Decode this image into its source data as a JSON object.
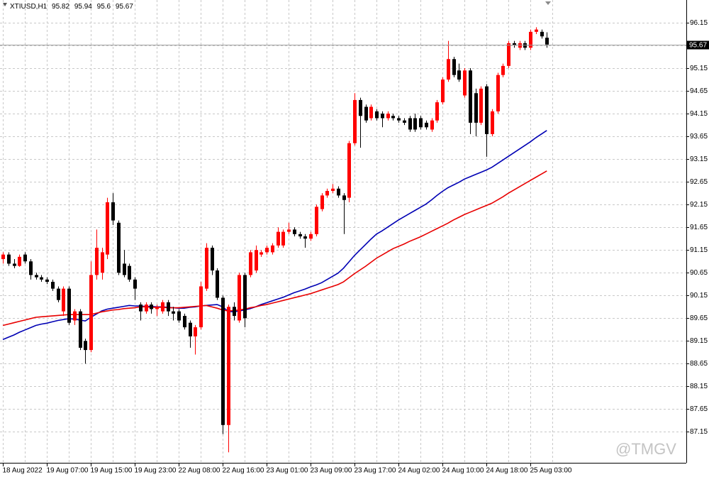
{
  "chart_data": {
    "type": "candlestick",
    "title": "XTIUSD,H1",
    "watermark": "@TMGV",
    "up_color": "#ff0000",
    "down_color": "#000000",
    "grid": true,
    "ylim": [
      86.5,
      96.65
    ],
    "yticks": [
      96.15,
      95.65,
      95.15,
      94.65,
      94.15,
      93.65,
      93.15,
      92.65,
      92.15,
      91.65,
      91.15,
      90.65,
      90.15,
      89.65,
      89.15,
      88.65,
      88.15,
      87.65,
      87.15
    ],
    "categories": [
      "18 Aug 2022",
      null,
      null,
      null,
      null,
      null,
      null,
      null,
      "19 Aug 07:00",
      null,
      null,
      null,
      null,
      null,
      null,
      null,
      "19 Aug 15:00",
      null,
      null,
      null,
      null,
      null,
      null,
      null,
      "19 Aug 23:00",
      null,
      null,
      null,
      null,
      null,
      null,
      null,
      "22 Aug 08:00",
      null,
      null,
      null,
      null,
      null,
      null,
      null,
      "22 Aug 16:00",
      null,
      null,
      null,
      null,
      null,
      null,
      null,
      "23 Aug 01:00",
      null,
      null,
      null,
      null,
      null,
      null,
      null,
      "23 Aug 09:00",
      null,
      null,
      null,
      null,
      null,
      null,
      null,
      "23 Aug 17:00",
      null,
      null,
      null,
      null,
      null,
      null,
      null,
      "24 Aug 02:00",
      null,
      null,
      null,
      null,
      null,
      null,
      null,
      "24 Aug 10:00",
      null,
      null,
      null,
      null,
      null,
      null,
      null,
      "24 Aug 18:00",
      null,
      null,
      null,
      null,
      null,
      null,
      null,
      "25 Aug 03:00",
      null,
      null,
      null
    ],
    "open": [
      90.95,
      91.05,
      90.85,
      90.8,
      91.05,
      90.9,
      90.6,
      90.55,
      90.5,
      90.45,
      90.3,
      89.8,
      90.3,
      89.6,
      89.8,
      89.15,
      88.95,
      90.6,
      90.65,
      91.05,
      92.2,
      91.75,
      90.85,
      90.8,
      90.5,
      89.95,
      89.8,
      89.95,
      89.85,
      89.8,
      90.0,
      89.8,
      89.8,
      89.7,
      89.55,
      89.25,
      89.45,
      90.3,
      91.2,
      90.7,
      90.1,
      87.3,
      89.9,
      89.6,
      90.6,
      90.6,
      90.7,
      91.05,
      91.1,
      91.1,
      91.25,
      91.25,
      91.55,
      91.6,
      91.5,
      91.45,
      91.4,
      91.5,
      92.05,
      92.35,
      92.45,
      92.5,
      92.35,
      92.3,
      93.5,
      94.45,
      94.3,
      94.05,
      94.2,
      94.15,
      94.05,
      94.1,
      94.05,
      94.0,
      94.05,
      94.05,
      94.05,
      93.95,
      93.8,
      94.0,
      94.4,
      94.9,
      95.35,
      95.1,
      94.55,
      95.1,
      94.6,
      93.95,
      94.75,
      93.7,
      94.2,
      95.0,
      95.2,
      95.7,
      95.6,
      95.7,
      95.6,
      95.95,
      95.95,
      95.82
    ],
    "high": [
      91.1,
      91.1,
      90.95,
      91.05,
      91.1,
      90.95,
      90.65,
      90.6,
      90.55,
      90.5,
      90.35,
      90.35,
      90.35,
      89.85,
      89.85,
      89.2,
      90.9,
      91.6,
      91.2,
      92.3,
      92.4,
      91.8,
      91.15,
      90.85,
      90.55,
      90.0,
      90.0,
      90.0,
      89.95,
      90.05,
      90.05,
      89.9,
      89.85,
      89.75,
      89.6,
      89.5,
      90.45,
      91.3,
      91.25,
      90.75,
      90.15,
      89.95,
      90.0,
      90.65,
      90.65,
      91.15,
      91.25,
      91.15,
      91.25,
      91.3,
      91.65,
      91.6,
      91.75,
      91.65,
      91.55,
      91.5,
      91.55,
      92.15,
      92.4,
      92.5,
      92.6,
      92.55,
      92.4,
      93.55,
      94.6,
      94.5,
      94.35,
      94.35,
      94.25,
      94.2,
      94.2,
      94.15,
      94.1,
      94.05,
      94.1,
      94.15,
      94.1,
      94.0,
      94.05,
      94.45,
      94.95,
      95.75,
      95.4,
      95.25,
      95.15,
      95.15,
      94.7,
      94.75,
      94.8,
      94.25,
      95.05,
      95.25,
      95.75,
      95.75,
      95.75,
      95.75,
      96.0,
      96.05,
      96.0,
      95.94
    ],
    "low": [
      90.85,
      90.8,
      90.75,
      90.78,
      90.85,
      90.5,
      90.5,
      90.45,
      90.4,
      90.25,
      90.0,
      89.7,
      89.5,
      89.5,
      88.95,
      88.65,
      88.9,
      90.5,
      90.5,
      90.95,
      91.7,
      90.6,
      90.55,
      90.45,
      90.05,
      89.6,
      89.75,
      89.75,
      89.7,
      89.75,
      89.7,
      89.6,
      89.55,
      89.4,
      89.0,
      88.85,
      89.4,
      90.25,
      90.6,
      90.05,
      87.1,
      86.7,
      89.6,
      89.55,
      89.45,
      90.55,
      90.65,
      91.0,
      91.05,
      91.05,
      91.2,
      91.2,
      91.5,
      91.45,
      91.4,
      91.2,
      91.35,
      91.45,
      92.0,
      92.3,
      92.4,
      92.3,
      91.5,
      92.2,
      93.45,
      93.4,
      93.95,
      94.0,
      94.0,
      93.85,
      94.0,
      94.0,
      93.95,
      93.9,
      93.75,
      93.75,
      93.8,
      93.8,
      93.75,
      93.95,
      94.35,
      94.85,
      94.95,
      94.85,
      94.5,
      93.7,
      93.65,
      93.9,
      93.2,
      93.65,
      94.15,
      94.95,
      95.15,
      95.6,
      95.55,
      95.55,
      95.55,
      95.9,
      95.8,
      95.6
    ],
    "close": [
      91.05,
      90.85,
      90.8,
      91.0,
      90.9,
      90.6,
      90.55,
      90.5,
      90.45,
      90.3,
      90.05,
      90.3,
      89.55,
      89.8,
      89.0,
      88.95,
      90.6,
      91.2,
      91.1,
      92.2,
      91.8,
      90.65,
      90.6,
      90.5,
      90.3,
      89.8,
      89.95,
      89.85,
      89.9,
      90.0,
      89.8,
      89.75,
      89.6,
      89.45,
      89.25,
      89.45,
      90.35,
      91.2,
      90.7,
      90.1,
      87.3,
      89.9,
      89.7,
      90.6,
      89.65,
      91.1,
      91.15,
      91.1,
      91.2,
      91.25,
      91.55,
      91.55,
      91.6,
      91.5,
      91.45,
      91.4,
      91.5,
      92.1,
      92.35,
      92.45,
      92.5,
      92.35,
      92.25,
      93.5,
      94.45,
      94.1,
      94.0,
      94.3,
      94.05,
      94.05,
      94.15,
      94.05,
      94.0,
      93.95,
      93.8,
      93.8,
      93.85,
      93.85,
      94.0,
      94.4,
      94.9,
      95.35,
      95.0,
      94.9,
      95.1,
      93.95,
      93.95,
      94.7,
      93.7,
      94.2,
      95.0,
      95.2,
      95.7,
      95.65,
      95.7,
      95.6,
      95.95,
      96.0,
      95.85,
      95.67
    ],
    "series": [
      {
        "color": "#0000b4",
        "values": [
          89.18,
          89.23,
          89.28,
          89.34,
          89.39,
          89.44,
          89.49,
          89.52,
          89.54,
          89.57,
          89.6,
          89.62,
          89.64,
          89.63,
          89.61,
          89.59,
          89.67,
          89.74,
          89.81,
          89.85,
          89.87,
          89.89,
          89.91,
          89.93,
          89.92,
          89.92,
          89.91,
          89.91,
          89.9,
          89.9,
          89.89,
          89.88,
          89.87,
          89.87,
          89.89,
          89.9,
          89.92,
          89.93,
          89.94,
          89.95,
          89.9,
          89.8,
          89.79,
          89.81,
          89.83,
          89.86,
          89.9,
          89.95,
          89.99,
          90.03,
          90.07,
          90.11,
          90.16,
          90.21,
          90.25,
          90.29,
          90.34,
          90.38,
          90.43,
          90.5,
          90.57,
          90.64,
          90.75,
          90.89,
          91.03,
          91.15,
          91.27,
          91.39,
          91.5,
          91.57,
          91.65,
          91.73,
          91.81,
          91.88,
          91.95,
          92.02,
          92.09,
          92.16,
          92.25,
          92.35,
          92.44,
          92.52,
          92.58,
          92.64,
          92.71,
          92.76,
          92.81,
          92.86,
          92.91,
          92.97,
          93.05,
          93.13,
          93.21,
          93.29,
          93.37,
          93.45,
          93.53,
          93.62,
          93.7,
          93.78
        ]
      },
      {
        "color": "#e80000",
        "values": [
          89.49,
          89.52,
          89.55,
          89.58,
          89.61,
          89.64,
          89.67,
          89.68,
          89.69,
          89.7,
          89.71,
          89.72,
          89.73,
          89.73,
          89.73,
          89.73,
          89.73,
          89.76,
          89.79,
          89.81,
          89.83,
          89.84,
          89.86,
          89.87,
          89.88,
          89.9,
          89.9,
          89.89,
          89.89,
          89.89,
          89.88,
          89.88,
          89.88,
          89.89,
          89.9,
          89.91,
          89.92,
          89.93,
          89.9,
          89.87,
          89.83,
          89.81,
          89.82,
          89.83,
          89.85,
          89.88,
          89.9,
          89.93,
          89.95,
          89.98,
          90.01,
          90.04,
          90.07,
          90.1,
          90.13,
          90.16,
          90.19,
          90.23,
          90.27,
          90.31,
          90.35,
          90.39,
          90.45,
          90.54,
          90.63,
          90.71,
          90.79,
          90.88,
          90.97,
          91.04,
          91.11,
          91.18,
          91.23,
          91.28,
          91.34,
          91.39,
          91.44,
          91.5,
          91.56,
          91.62,
          91.68,
          91.74,
          91.81,
          91.87,
          91.93,
          91.98,
          92.03,
          92.08,
          92.13,
          92.18,
          92.25,
          92.32,
          92.4,
          92.47,
          92.54,
          92.61,
          92.68,
          92.75,
          92.82,
          92.89
        ]
      }
    ]
  }
}
